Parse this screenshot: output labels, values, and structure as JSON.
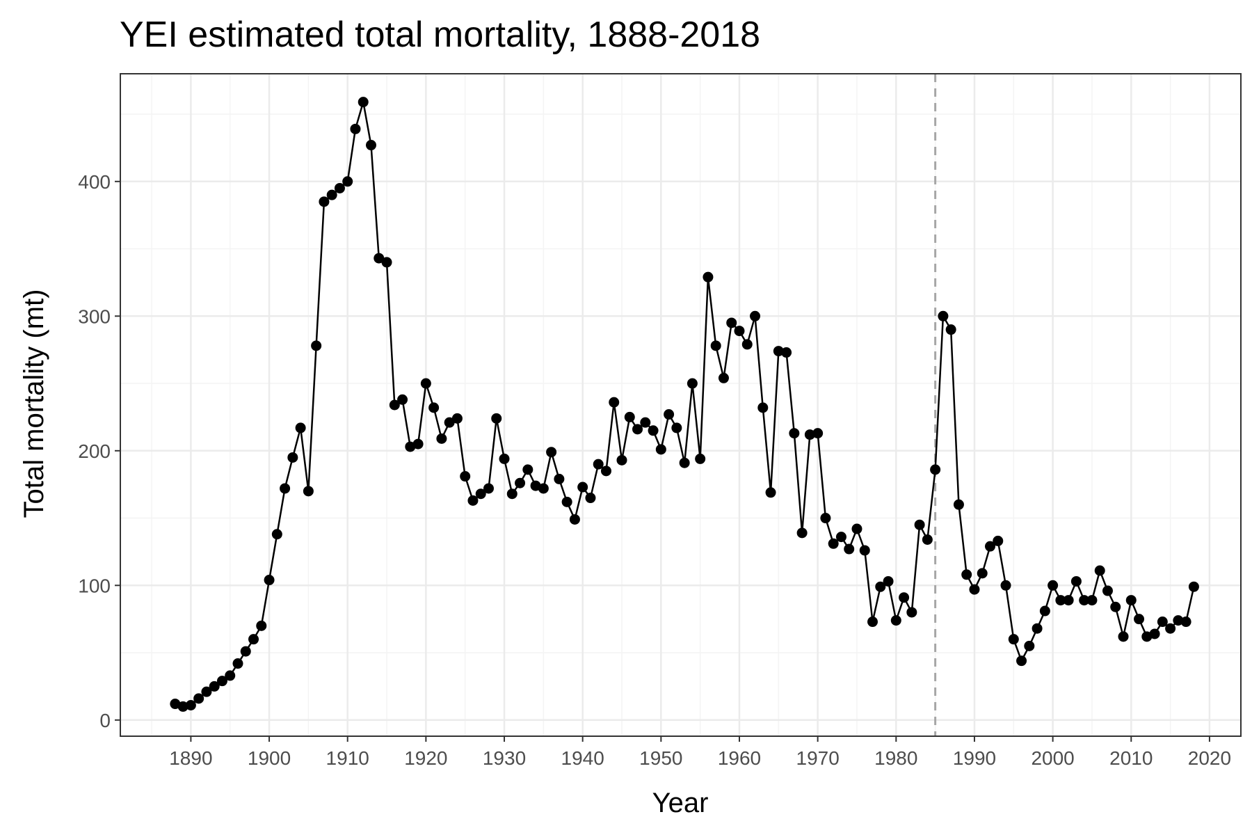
{
  "chart_data": {
    "type": "line",
    "title": "YEI estimated total mortality, 1888-2018",
    "xlabel": "Year",
    "ylabel": "Total mortality (mt)",
    "xlim": [
      1881,
      2024
    ],
    "ylim": [
      -12,
      480
    ],
    "xticks": [
      1890,
      1900,
      1910,
      1920,
      1930,
      1940,
      1950,
      1960,
      1970,
      1980,
      1990,
      2000,
      2010,
      2020
    ],
    "yticks": [
      0,
      100,
      200,
      300,
      400
    ],
    "grid": true,
    "reference_line": {
      "x": 1985,
      "style": "dashed",
      "color": "#a6a6a6"
    },
    "line_color": "#000000",
    "x": [
      1888,
      1889,
      1890,
      1891,
      1892,
      1893,
      1894,
      1895,
      1896,
      1897,
      1898,
      1899,
      1900,
      1901,
      1902,
      1903,
      1904,
      1905,
      1906,
      1907,
      1908,
      1909,
      1910,
      1911,
      1912,
      1913,
      1914,
      1915,
      1916,
      1917,
      1918,
      1919,
      1920,
      1921,
      1922,
      1923,
      1924,
      1925,
      1926,
      1927,
      1928,
      1929,
      1930,
      1931,
      1932,
      1933,
      1934,
      1935,
      1936,
      1937,
      1938,
      1939,
      1940,
      1941,
      1942,
      1943,
      1944,
      1945,
      1946,
      1947,
      1948,
      1949,
      1950,
      1951,
      1952,
      1953,
      1954,
      1955,
      1956,
      1957,
      1958,
      1959,
      1960,
      1961,
      1962,
      1963,
      1964,
      1965,
      1966,
      1967,
      1968,
      1969,
      1970,
      1971,
      1972,
      1973,
      1974,
      1975,
      1976,
      1977,
      1978,
      1979,
      1980,
      1981,
      1982,
      1983,
      1984,
      1985,
      1986,
      1987,
      1988,
      1989,
      1990,
      1991,
      1992,
      1993,
      1994,
      1995,
      1996,
      1997,
      1998,
      1999,
      2000,
      2001,
      2002,
      2003,
      2004,
      2005,
      2006,
      2007,
      2008,
      2009,
      2010,
      2011,
      2012,
      2013,
      2014,
      2015,
      2016,
      2017,
      2018
    ],
    "y": [
      12,
      10,
      11,
      16,
      21,
      25,
      29,
      33,
      42,
      51,
      60,
      70,
      104,
      138,
      172,
      195,
      217,
      170,
      278,
      385,
      390,
      395,
      400,
      439,
      459,
      427,
      343,
      340,
      234,
      238,
      203,
      205,
      250,
      232,
      209,
      221,
      224,
      181,
      163,
      168,
      172,
      224,
      194,
      168,
      176,
      186,
      174,
      172,
      199,
      179,
      162,
      149,
      173,
      165,
      190,
      185,
      236,
      193,
      225,
      216,
      221,
      215,
      201,
      227,
      217,
      191,
      250,
      194,
      329,
      278,
      254,
      295,
      289,
      279,
      300,
      232,
      169,
      274,
      273,
      213,
      139,
      212,
      213,
      150,
      131,
      136,
      127,
      142,
      126,
      73,
      99,
      103,
      74,
      91,
      80,
      145,
      134,
      186,
      300,
      290,
      160,
      108,
      97,
      109,
      129,
      133,
      100,
      60,
      44,
      55,
      68,
      81,
      100,
      89,
      89,
      103,
      89,
      89,
      111,
      96,
      84,
      62,
      89,
      75,
      62,
      64,
      73,
      68,
      74,
      73,
      99
    ]
  }
}
